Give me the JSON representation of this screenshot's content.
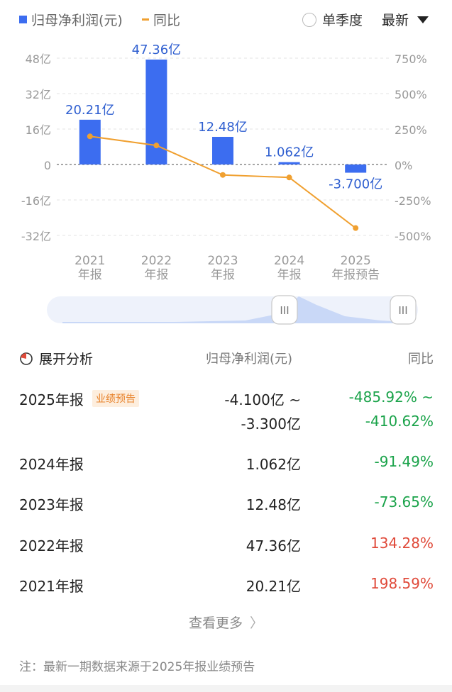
{
  "legend": {
    "bar_label": "归母净利润(元)",
    "line_label": "同比",
    "season_label": "单季度",
    "sort_label": "最新"
  },
  "chart_data": {
    "type": "bar",
    "categories": [
      "2021年报",
      "2022年报",
      "2023年报",
      "2024年报",
      "2025年报预告"
    ],
    "category_lines": [
      [
        "2021",
        "年报"
      ],
      [
        "2022",
        "年报"
      ],
      [
        "2023",
        "年报"
      ],
      [
        "2024",
        "年报"
      ],
      [
        "2025",
        "年报预告"
      ]
    ],
    "series": [
      {
        "name": "归母净利润(元)",
        "type": "bar",
        "axis": "left",
        "unit": "亿",
        "values": [
          20.21,
          47.36,
          12.48,
          1.062,
          -3.7
        ],
        "labels": [
          "20.21亿",
          "47.36亿",
          "12.48亿",
          "1.062亿",
          "-3.700亿"
        ],
        "color": "#3c6df0"
      },
      {
        "name": "同比",
        "type": "line",
        "axis": "right",
        "unit": "%",
        "values": [
          198.59,
          134.28,
          -73.65,
          -91.49,
          -448.27
        ],
        "color": "#f0a030"
      }
    ],
    "left_axis": {
      "ticks": [
        48,
        32,
        16,
        0,
        -16,
        -32
      ],
      "labels": [
        "48亿",
        "32亿",
        "16亿",
        "0",
        "-16亿",
        "-32亿"
      ],
      "ylim": [
        -32,
        48
      ]
    },
    "right_axis": {
      "ticks": [
        750,
        500,
        250,
        0,
        -250,
        -500
      ],
      "labels": [
        "750%",
        "500%",
        "250%",
        "0%",
        "-250%",
        "-500%"
      ],
      "ylim": [
        -500,
        750
      ]
    },
    "grid": true
  },
  "table": {
    "header": {
      "analysis": "展开分析",
      "value": "归母净利润(元)",
      "yoy": "同比"
    },
    "rows": [
      {
        "period": "2025年报",
        "badge": "业绩预告",
        "value_line1": "-4.100亿 ~",
        "value_line2": "-3.300亿",
        "yoy_line1": "-485.92% ~",
        "yoy_line2": "-410.62%",
        "trend": "down"
      },
      {
        "period": "2024年报",
        "value": "1.062亿",
        "yoy": "-91.49%",
        "trend": "down"
      },
      {
        "period": "2023年报",
        "value": "12.48亿",
        "yoy": "-73.65%",
        "trend": "down"
      },
      {
        "period": "2022年报",
        "value": "47.36亿",
        "yoy": "134.28%",
        "trend": "up"
      },
      {
        "period": "2021年报",
        "value": "20.21亿",
        "yoy": "198.59%",
        "trend": "up"
      }
    ]
  },
  "more_label": "查看更多",
  "footnote": "注：最新一期数据来源于2025年报业绩预告",
  "colors": {
    "bar": "#3c6df0",
    "line": "#f0a030",
    "positive": "#e04a3a",
    "negative": "#1aa34a"
  }
}
